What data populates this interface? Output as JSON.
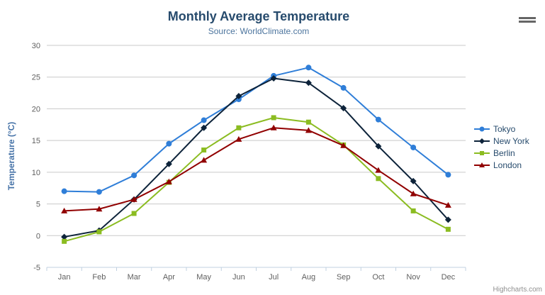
{
  "header": {
    "title": "Monthly Average Temperature",
    "subtitle": "Source: WorldClimate.com"
  },
  "context_menu": {
    "icon": "hamburger-menu-icon",
    "color": "#666666"
  },
  "credits": {
    "label": "Highcharts.com",
    "color": "#909090"
  },
  "colors": {
    "title_text": "#274b6d",
    "subtitle_text": "#4d759e",
    "axis_label_text": "#606060",
    "yaxis_title_text": "#4572A7",
    "legend_text": "#274b6d",
    "grid_line": "#C9C9C9",
    "axis_line": "#C0D0E0"
  },
  "chart_data": {
    "type": "line",
    "title": "Monthly Average Temperature",
    "subtitle": "Source: WorldClimate.com",
    "categories": [
      "Jan",
      "Feb",
      "Mar",
      "Apr",
      "May",
      "Jun",
      "Jul",
      "Aug",
      "Sep",
      "Oct",
      "Nov",
      "Dec"
    ],
    "series": [
      {
        "name": "Tokyo",
        "color": "#2f7ed8",
        "marker": "circle",
        "values": [
          7.0,
          6.9,
          9.5,
          14.5,
          18.2,
          21.5,
          25.2,
          26.5,
          23.3,
          18.3,
          13.9,
          9.6
        ]
      },
      {
        "name": "New York",
        "color": "#0d233a",
        "marker": "diamond",
        "values": [
          -0.2,
          0.8,
          5.7,
          11.3,
          17.0,
          22.0,
          24.8,
          24.1,
          20.1,
          14.1,
          8.6,
          2.5
        ]
      },
      {
        "name": "Berlin",
        "color": "#8bbc21",
        "marker": "square",
        "values": [
          -0.9,
          0.6,
          3.5,
          8.4,
          13.5,
          17.0,
          18.6,
          17.9,
          14.3,
          9.0,
          3.9,
          1.0
        ]
      },
      {
        "name": "London",
        "color": "#910000",
        "marker": "triangle",
        "values": [
          3.9,
          4.2,
          5.7,
          8.5,
          11.9,
          15.2,
          17.0,
          16.6,
          14.2,
          10.3,
          6.6,
          4.8
        ]
      }
    ],
    "xlabel": "",
    "ylabel": "Temperature (°C)",
    "ylim": [
      -5,
      30
    ],
    "ytick_step": 5,
    "grid": true,
    "legend_position": "right"
  }
}
